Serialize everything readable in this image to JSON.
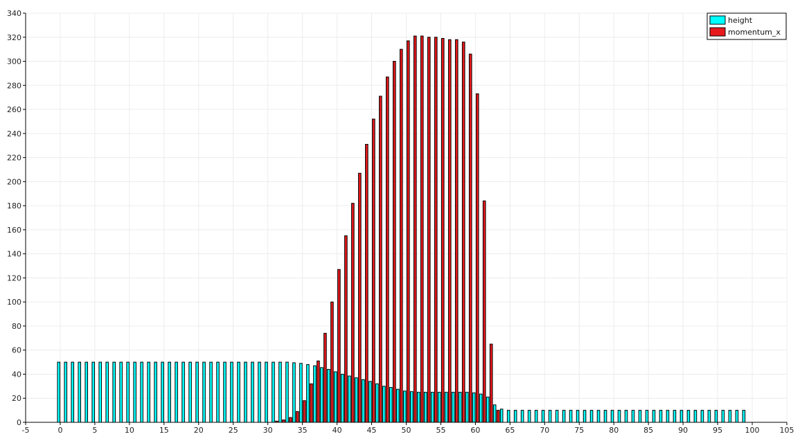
{
  "chart_data": {
    "type": "bar",
    "title": "",
    "xlabel": "",
    "ylabel": "",
    "xlim": [
      -5,
      105
    ],
    "ylim": [
      0,
      340
    ],
    "x_ticks": [
      -5,
      0,
      5,
      10,
      15,
      20,
      25,
      30,
      35,
      40,
      45,
      50,
      55,
      60,
      65,
      70,
      75,
      80,
      85,
      90,
      95,
      100,
      105
    ],
    "y_ticks": [
      0,
      20,
      40,
      60,
      80,
      100,
      120,
      140,
      160,
      180,
      200,
      220,
      240,
      260,
      280,
      300,
      320,
      340
    ],
    "grid": true,
    "legend_position": "top-right",
    "x": [
      0,
      1,
      2,
      3,
      4,
      5,
      6,
      7,
      8,
      9,
      10,
      11,
      12,
      13,
      14,
      15,
      16,
      17,
      18,
      19,
      20,
      21,
      22,
      23,
      24,
      25,
      26,
      27,
      28,
      29,
      30,
      31,
      32,
      33,
      34,
      35,
      36,
      37,
      38,
      39,
      40,
      41,
      42,
      43,
      44,
      45,
      46,
      47,
      48,
      49,
      50,
      51,
      52,
      53,
      54,
      55,
      56,
      57,
      58,
      59,
      60,
      61,
      62,
      63,
      64,
      65,
      66,
      67,
      68,
      69,
      70,
      71,
      72,
      73,
      74,
      75,
      76,
      77,
      78,
      79,
      80,
      81,
      82,
      83,
      84,
      85,
      86,
      87,
      88,
      89,
      90,
      91,
      92,
      93,
      94,
      95,
      96,
      97,
      98,
      99
    ],
    "series": [
      {
        "name": "height",
        "color": "#00ffff",
        "values": [
          50,
          50,
          50,
          50,
          50,
          50,
          50,
          50,
          50,
          50,
          50,
          50,
          50,
          50,
          50,
          50,
          50,
          50,
          50,
          50,
          50,
          50,
          50,
          50,
          50,
          50,
          50,
          50,
          50,
          50,
          50,
          50,
          50,
          50,
          49.5,
          49,
          48,
          47,
          45.5,
          44,
          42,
          40,
          38.5,
          37,
          35.5,
          34,
          32,
          30,
          29,
          27.5,
          26,
          25.5,
          25,
          25,
          25,
          25,
          25,
          25,
          25,
          25,
          24.5,
          23.5,
          21,
          14.5,
          11,
          10,
          10,
          10,
          10,
          10,
          10,
          10,
          10,
          10,
          10,
          10,
          10,
          10,
          10,
          10,
          10,
          10,
          10,
          10,
          10,
          10,
          10,
          10,
          10,
          10,
          10,
          10,
          10,
          10,
          10,
          10,
          10,
          10,
          10,
          10
        ]
      },
      {
        "name": "momentum_x",
        "color": "#e8191c",
        "values": [
          0,
          0,
          0,
          0,
          0,
          0,
          0,
          0,
          0,
          0,
          0,
          0,
          0,
          0,
          0,
          0,
          0,
          0,
          0,
          0,
          0,
          0,
          0,
          0,
          0,
          0,
          0,
          0,
          0,
          0,
          0,
          1,
          2,
          4,
          9,
          18,
          32,
          51,
          74,
          100,
          127,
          155,
          182,
          207,
          231,
          252,
          271,
          287,
          300,
          310,
          317,
          321,
          321,
          320,
          320,
          319,
          318,
          318,
          316,
          306,
          273,
          184,
          65,
          10,
          0,
          0,
          0,
          0,
          0,
          0,
          0,
          0,
          0,
          0,
          0,
          0,
          0,
          0,
          0,
          0,
          0,
          0,
          0,
          0,
          0,
          0,
          0,
          0,
          0,
          0,
          0,
          0,
          0,
          0,
          0,
          0,
          0,
          0,
          0,
          0
        ]
      }
    ]
  }
}
